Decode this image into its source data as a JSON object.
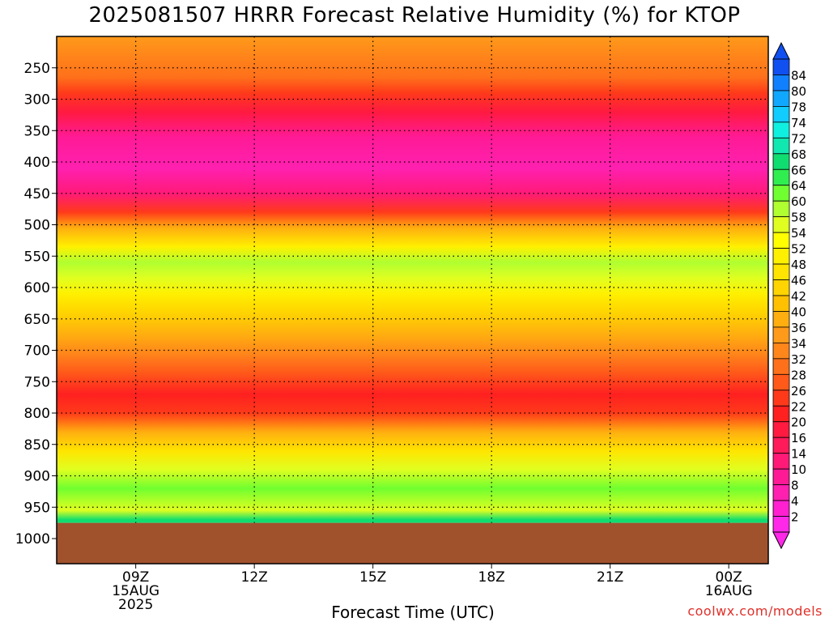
{
  "chart_data": {
    "type": "heatmap",
    "title": "2025081507 HRRR Forecast Relative Humidity (%) for KTOP",
    "xlabel": "Forecast Time (UTC)",
    "ylabel": "",
    "credit": "coolwx.com/models",
    "x_ticks": [
      {
        "hour": 9,
        "lines": [
          "09Z",
          "15AUG",
          "2025"
        ]
      },
      {
        "hour": 12,
        "lines": [
          "12Z"
        ]
      },
      {
        "hour": 15,
        "lines": [
          "15Z"
        ]
      },
      {
        "hour": 18,
        "lines": [
          "18Z"
        ]
      },
      {
        "hour": 21,
        "lines": [
          "21Z"
        ]
      },
      {
        "hour": 24,
        "lines": [
          "00Z",
          "16AUG"
        ]
      }
    ],
    "xlim": [
      7,
      25
    ],
    "y_ticks": [
      250,
      300,
      350,
      400,
      450,
      500,
      550,
      600,
      650,
      700,
      750,
      800,
      850,
      900,
      950,
      1000
    ],
    "ylim": [
      200,
      1040
    ],
    "ground_pressure": 975,
    "colorbar_levels": [
      2,
      4,
      8,
      10,
      14,
      16,
      20,
      22,
      26,
      28,
      32,
      34,
      36,
      40,
      42,
      46,
      48,
      52,
      54,
      58,
      60,
      64,
      66,
      68,
      72,
      74,
      78,
      80,
      84
    ],
    "colorbar_colors": [
      "#ff28e8",
      "#ff20d0",
      "#ff20b0",
      "#ff1a95",
      "#ff1a78",
      "#ff1a5a",
      "#ff1a40",
      "#ff2020",
      "#ff3a1a",
      "#ff5a1a",
      "#ff701a",
      "#ff861a",
      "#ff9a1a",
      "#ffae10",
      "#ffc000",
      "#ffd400",
      "#ffe400",
      "#fff000",
      "#ffff00",
      "#e0ff20",
      "#b0ff30",
      "#70ff30",
      "#30ee50",
      "#10dd70",
      "#10e8b0",
      "#10f0e0",
      "#10ccff",
      "#10a8ff",
      "#1080ff",
      "#1050f0"
    ],
    "ground_color": "#a0522d",
    "grid": true,
    "profile": [
      {
        "p": 200,
        "rh": 34
      },
      {
        "p": 230,
        "rh": 32
      },
      {
        "p": 265,
        "rh": 28
      },
      {
        "p": 290,
        "rh": 22
      },
      {
        "p": 320,
        "rh": 16
      },
      {
        "p": 360,
        "rh": 8
      },
      {
        "p": 410,
        "rh": 4
      },
      {
        "p": 450,
        "rh": 10
      },
      {
        "p": 480,
        "rh": 22
      },
      {
        "p": 505,
        "rh": 36
      },
      {
        "p": 535,
        "rh": 48
      },
      {
        "p": 560,
        "rh": 58
      },
      {
        "p": 585,
        "rh": 56
      },
      {
        "p": 610,
        "rh": 48
      },
      {
        "p": 640,
        "rh": 42
      },
      {
        "p": 675,
        "rh": 38
      },
      {
        "p": 705,
        "rh": 32
      },
      {
        "p": 735,
        "rh": 26
      },
      {
        "p": 770,
        "rh": 20
      },
      {
        "p": 800,
        "rh": 24
      },
      {
        "p": 830,
        "rh": 36
      },
      {
        "p": 860,
        "rh": 46
      },
      {
        "p": 890,
        "rh": 54
      },
      {
        "p": 920,
        "rh": 60
      },
      {
        "p": 955,
        "rh": 56
      },
      {
        "p": 970,
        "rh": 66
      }
    ]
  }
}
